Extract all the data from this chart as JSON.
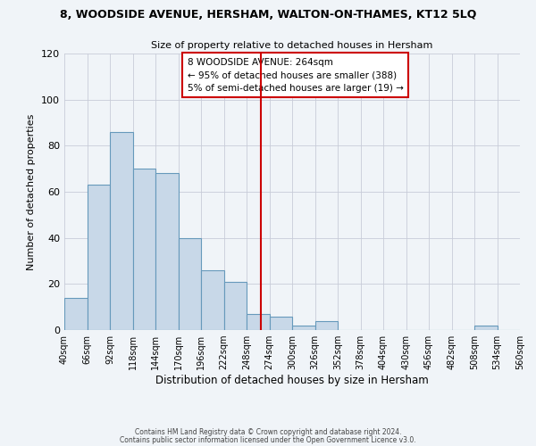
{
  "title": "8, WOODSIDE AVENUE, HERSHAM, WALTON-ON-THAMES, KT12 5LQ",
  "subtitle": "Size of property relative to detached houses in Hersham",
  "xlabel": "Distribution of detached houses by size in Hersham",
  "ylabel": "Number of detached properties",
  "bar_values": [
    14,
    63,
    86,
    70,
    68,
    40,
    26,
    21,
    7,
    6,
    2,
    4,
    0,
    0,
    0,
    0,
    0,
    0,
    2,
    0
  ],
  "bin_edges": [
    40,
    66,
    92,
    118,
    144,
    170,
    196,
    222,
    248,
    274,
    300,
    326,
    352,
    378,
    404,
    430,
    456,
    482,
    508,
    534,
    560
  ],
  "tick_labels": [
    "40sqm",
    "66sqm",
    "92sqm",
    "118sqm",
    "144sqm",
    "170sqm",
    "196sqm",
    "222sqm",
    "248sqm",
    "274sqm",
    "300sqm",
    "326sqm",
    "352sqm",
    "378sqm",
    "404sqm",
    "430sqm",
    "456sqm",
    "482sqm",
    "508sqm",
    "534sqm",
    "560sqm"
  ],
  "bar_color": "#c8d8e8",
  "bar_edge_color": "#6699bb",
  "vline_x": 264,
  "vline_color": "#cc0000",
  "annotation_line1": "8 WOODSIDE AVENUE: 264sqm",
  "annotation_line2": "← 95% of detached houses are smaller (388)",
  "annotation_line3": "5% of semi-detached houses are larger (19) →",
  "box_edge_color": "#cc0000",
  "ylim": [
    0,
    120
  ],
  "yticks": [
    0,
    20,
    40,
    60,
    80,
    100,
    120
  ],
  "footer_line1": "Contains HM Land Registry data © Crown copyright and database right 2024.",
  "footer_line2": "Contains public sector information licensed under the Open Government Licence v3.0.",
  "bg_color": "#f0f4f8",
  "grid_color": "#c8ccd8"
}
